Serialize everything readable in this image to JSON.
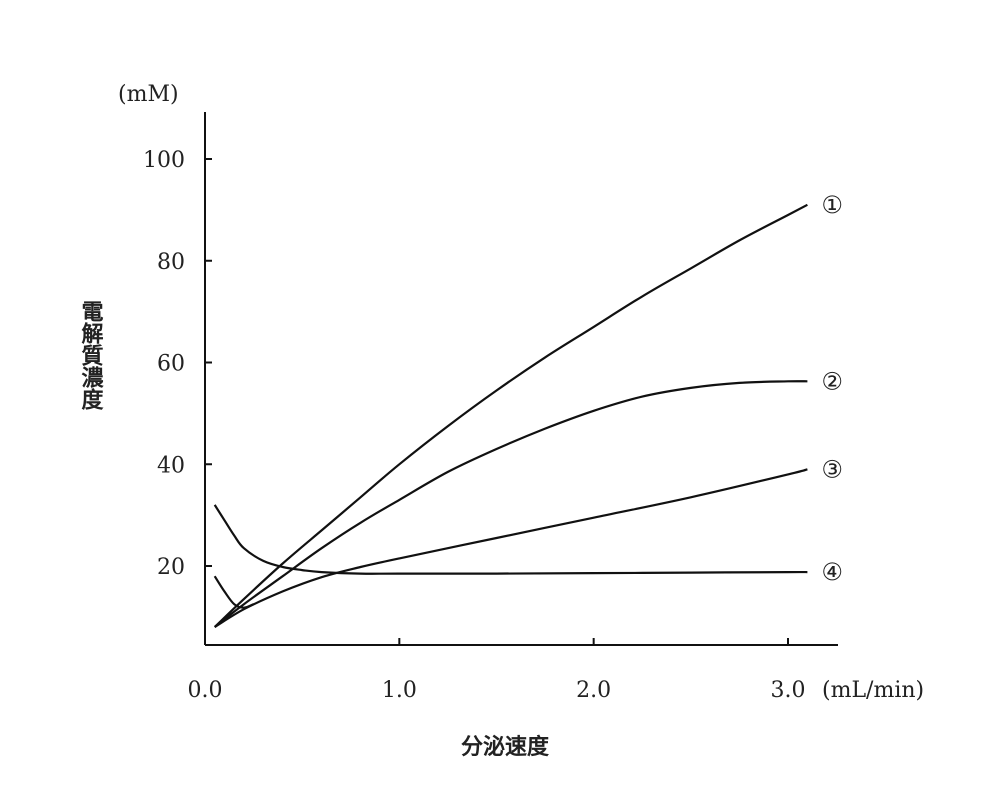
{
  "chart_data": {
    "type": "line",
    "title": "",
    "xlabel": "分泌速度",
    "ylabel": "電解質濃度",
    "x_unit": "(mL/min)",
    "y_unit": "(mM)",
    "xlim": [
      0.0,
      3.25
    ],
    "ylim": [
      5,
      110
    ],
    "x_ticks": [
      {
        "value": 0.0,
        "label": "0.0"
      },
      {
        "value": 1.0,
        "label": "1.0"
      },
      {
        "value": 2.0,
        "label": "2.0"
      },
      {
        "value": 3.0,
        "label": "3.0"
      }
    ],
    "y_ticks": [
      {
        "value": 20,
        "label": "20"
      },
      {
        "value": 40,
        "label": "40"
      },
      {
        "value": 60,
        "label": "60"
      },
      {
        "value": 80,
        "label": "80"
      },
      {
        "value": 100,
        "label": "100"
      }
    ],
    "grid": false,
    "legend": "none",
    "series": [
      {
        "name": "①",
        "x": [
          0.05,
          0.2,
          0.4,
          0.6,
          0.8,
          1.0,
          1.25,
          1.5,
          1.75,
          2.0,
          2.25,
          2.5,
          2.75,
          3.0,
          3.1
        ],
        "y": [
          8,
          13.5,
          20.5,
          27,
          33.5,
          40,
          47.5,
          54.5,
          61,
          67,
          73,
          78.5,
          84,
          89,
          91
        ]
      },
      {
        "name": "②",
        "x": [
          0.05,
          0.2,
          0.4,
          0.6,
          0.8,
          1.0,
          1.25,
          1.5,
          1.75,
          2.0,
          2.25,
          2.5,
          2.75,
          3.0,
          3.1
        ],
        "y": [
          8,
          12.5,
          18,
          23.5,
          28.5,
          33,
          38.5,
          43,
          47,
          50.5,
          53.3,
          55,
          56,
          56.3,
          56.3
        ]
      },
      {
        "name": "③",
        "x": [
          0.05,
          0.2,
          0.4,
          0.6,
          0.8,
          1.0,
          1.5,
          2.0,
          2.5,
          3.0,
          3.1
        ],
        "y": [
          8,
          11.5,
          15,
          17.8,
          19.8,
          21.5,
          25.5,
          29.5,
          33.5,
          38,
          39
        ]
      },
      {
        "name": "④",
        "x": [
          0.05,
          0.1,
          0.15,
          0.2,
          0.3,
          0.4,
          0.5,
          0.6,
          0.8,
          1.0,
          1.5,
          2.0,
          2.5,
          3.0,
          3.1
        ],
        "y": [
          32,
          29,
          26,
          23.5,
          21,
          19.8,
          19.2,
          18.8,
          18.5,
          18.5,
          18.5,
          18.6,
          18.7,
          18.8,
          18.8
        ]
      },
      {
        "name": "",
        "x": [
          0.05,
          0.1,
          0.15,
          0.2,
          0.25
        ],
        "y": [
          18,
          15,
          12.5,
          11.8,
          12.5
        ]
      }
    ]
  }
}
